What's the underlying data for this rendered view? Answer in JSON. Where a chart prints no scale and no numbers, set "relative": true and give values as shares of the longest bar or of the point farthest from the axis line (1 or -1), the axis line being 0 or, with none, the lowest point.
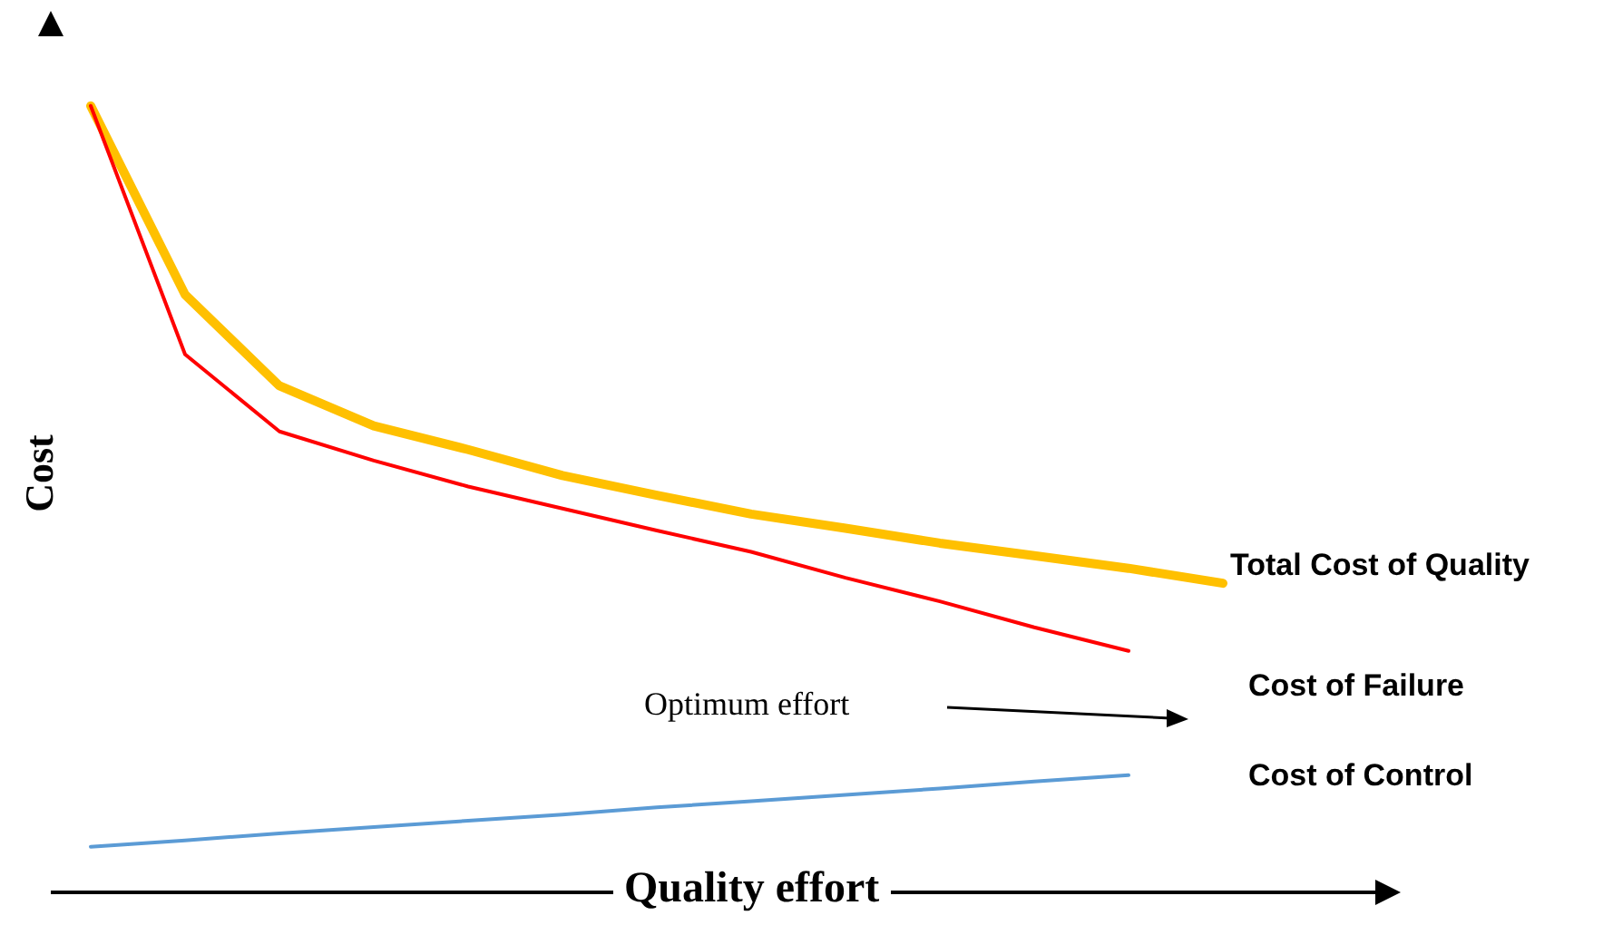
{
  "chart_data": {
    "type": "line",
    "relative": true,
    "xlabel": "Quality effort",
    "ylabel": "Cost",
    "annotations": [
      "Optimum effort"
    ],
    "marker": "none",
    "categories": [
      null,
      null,
      null,
      null,
      null,
      null,
      null,
      null,
      null,
      null,
      null,
      null,
      null
    ],
    "series": [
      {
        "name": "Total Cost of Quality",
        "color": "#ffc000",
        "values": [
          1,
          0.76,
          0.644,
          0.593,
          0.563,
          0.53,
          0.505,
          0.481,
          0.463,
          0.444,
          0.428,
          0.412,
          0.393
        ]
      },
      {
        "name": "Cost of Failure",
        "color": "#ff0000",
        "values": [
          1,
          0.684,
          0.586,
          0.549,
          0.516,
          0.488,
          0.46,
          0.433,
          0.4,
          0.37,
          0.337,
          0.307,
          null
        ]
      },
      {
        "name": "Cost of Control",
        "color": "#5b9bd5",
        "values": [
          0.058,
          0.066,
          0.075,
          0.083,
          0.091,
          0.099,
          0.108,
          0.116,
          0.124,
          0.132,
          0.141,
          0.149,
          null
        ]
      }
    ]
  }
}
